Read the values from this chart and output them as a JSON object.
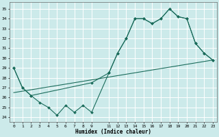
{
  "xlabel": "Humidex (Indice chaleur)",
  "background_color": "#cceaea",
  "grid_color": "#ffffff",
  "line_color": "#1a6b5a",
  "xlim": [
    -0.5,
    23.5
  ],
  "ylim": [
    23.5,
    35.7
  ],
  "yticks": [
    24,
    25,
    26,
    27,
    28,
    29,
    30,
    31,
    32,
    33,
    34,
    35
  ],
  "xtick_labels": [
    "0",
    "1",
    "2",
    "3",
    "4",
    "5",
    "6",
    "7",
    "8",
    "9",
    "",
    "11",
    "12",
    "13",
    "14",
    "15",
    "16",
    "17",
    "18",
    "19",
    "20",
    "21",
    "22",
    "23"
  ],
  "line1_x": [
    0,
    1,
    2,
    3,
    4,
    5,
    6,
    7,
    8,
    9,
    11,
    12,
    13,
    14,
    15,
    16,
    17,
    18,
    19,
    20,
    21,
    22,
    23
  ],
  "line1_y": [
    29,
    27,
    26.2,
    25.5,
    25,
    24.2,
    25.2,
    24.5,
    25.2,
    24.5,
    28.5,
    30.5,
    32,
    34,
    34,
    33.5,
    34,
    35,
    34.2,
    34,
    31.5,
    30.5,
    29.8
  ],
  "line2_x": [
    0,
    1,
    2,
    9,
    11,
    12,
    13,
    14,
    15,
    16,
    17,
    18,
    19,
    20,
    21,
    22,
    23
  ],
  "line2_y": [
    29,
    27,
    26.2,
    27.5,
    28.5,
    30.5,
    32,
    34,
    34,
    33.5,
    34,
    35,
    34.2,
    34,
    31.5,
    30.5,
    29.8
  ],
  "line3_x": [
    0,
    23
  ],
  "line3_y": [
    26.5,
    29.8
  ]
}
